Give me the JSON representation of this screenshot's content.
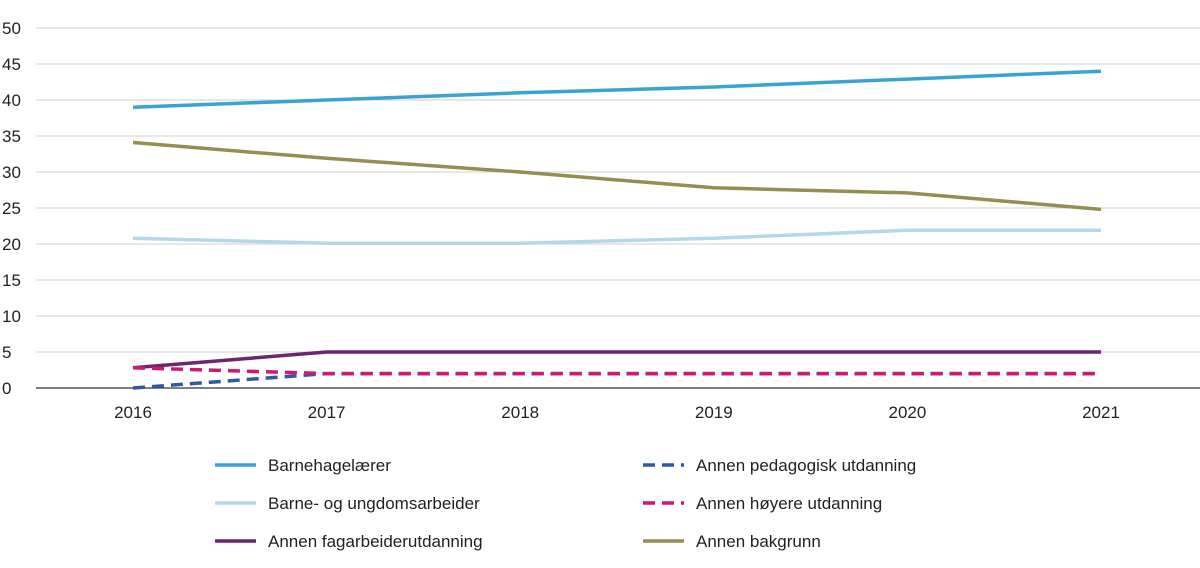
{
  "chart_data": {
    "type": "line",
    "title": "",
    "xlabel": "",
    "ylabel": "",
    "x": [
      2016,
      2017,
      2018,
      2019,
      2020,
      2021
    ],
    "ylim": [
      0,
      50
    ],
    "yticks": [
      0,
      5,
      10,
      15,
      20,
      25,
      30,
      35,
      40,
      45,
      50
    ],
    "grid": "horizontal",
    "legend_position": "bottom",
    "series": [
      {
        "name": "Barnehagelærer",
        "values": [
          39,
          40,
          41,
          41.8,
          42.9,
          44
        ],
        "color": "#3ba3d3",
        "dash": "solid"
      },
      {
        "name": "Barne- og ungdomsarbeider",
        "values": [
          20.8,
          20.1,
          20.1,
          20.8,
          21.9,
          21.9
        ],
        "color": "#b3d8ea",
        "dash": "solid"
      },
      {
        "name": "Annen fagarbeiderutdanning",
        "values": [
          2.8,
          5,
          5,
          5,
          5,
          5
        ],
        "color": "#6b2571",
        "dash": "solid"
      },
      {
        "name": "Annen pedagogisk utdanning",
        "values": [
          0,
          2,
          2,
          2,
          2,
          2
        ],
        "color": "#2f59a0",
        "dash": "dashed"
      },
      {
        "name": "Annen høyere utdanning",
        "values": [
          2.8,
          2,
          2,
          2,
          2,
          2
        ],
        "color": "#d3166e",
        "dash": "dashed"
      },
      {
        "name": "Annen bakgrunn",
        "values": [
          34.1,
          31.9,
          30,
          27.8,
          27.1,
          24.8
        ],
        "color": "#948e52",
        "dash": "solid"
      }
    ]
  }
}
